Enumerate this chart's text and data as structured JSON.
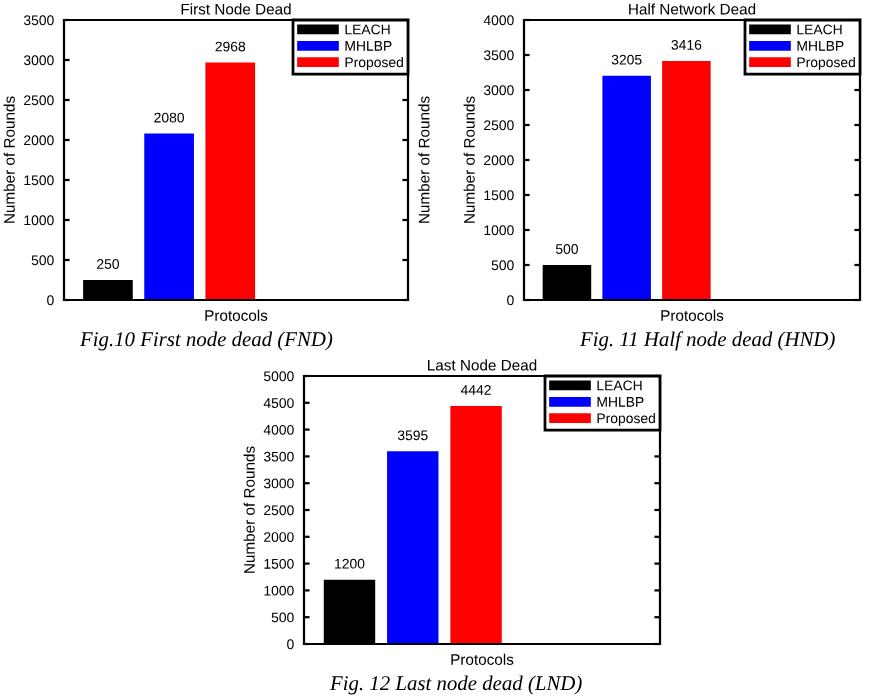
{
  "chart_data": [
    {
      "type": "bar",
      "title": "First Node Dead",
      "xlabel": "Protocols",
      "ylabel": "Number of Rounds",
      "y2label": "Number of Rounds",
      "categories": [
        null
      ],
      "series": [
        {
          "name": "LEACH",
          "color": "#000000",
          "values": [
            250
          ]
        },
        {
          "name": "MHLBP",
          "color": "#0000ff",
          "values": [
            2080
          ]
        },
        {
          "name": "Proposed",
          "color": "#ff0000",
          "values": [
            2968
          ]
        }
      ],
      "ylim": [
        0,
        3500
      ],
      "yticks": [
        0,
        500,
        1000,
        1500,
        2000,
        2500,
        3000,
        3500
      ],
      "data_labels": true,
      "legend": "top right",
      "annotations": [
        "Fig.10 First node dead (FND)"
      ]
    },
    {
      "type": "bar",
      "title": "Half Network Dead",
      "xlabel": "Protocols",
      "ylabel": "Number of Rounds",
      "categories": [
        null
      ],
      "series": [
        {
          "name": "LEACH",
          "color": "#000000",
          "values": [
            500
          ]
        },
        {
          "name": "MHLBP",
          "color": "#0000ff",
          "values": [
            3205
          ]
        },
        {
          "name": "Proposed",
          "color": "#ff0000",
          "values": [
            3416
          ]
        }
      ],
      "ylim": [
        0,
        4000
      ],
      "yticks": [
        0,
        500,
        1000,
        1500,
        2000,
        2500,
        3000,
        3500,
        4000
      ],
      "data_labels": true,
      "legend": "top right",
      "annotations": [
        "Fig. 11 Half node dead (HND)"
      ]
    },
    {
      "type": "bar",
      "title": "Last Node Dead",
      "xlabel": "Protocols",
      "ylabel": "Number of Rounds",
      "categories": [
        null
      ],
      "series": [
        {
          "name": "LEACH",
          "color": "#000000",
          "values": [
            1200
          ]
        },
        {
          "name": "MHLBP",
          "color": "#0000ff",
          "values": [
            3595
          ]
        },
        {
          "name": "Proposed",
          "color": "#ff0000",
          "values": [
            4442
          ]
        }
      ],
      "ylim": [
        0,
        5000
      ],
      "yticks": [
        0,
        500,
        1000,
        1500,
        2000,
        2500,
        3000,
        3500,
        4000,
        4500,
        5000
      ],
      "data_labels": true,
      "legend": "top right",
      "annotations": [
        "Fig. 12 Last node dead (LND)"
      ]
    }
  ]
}
